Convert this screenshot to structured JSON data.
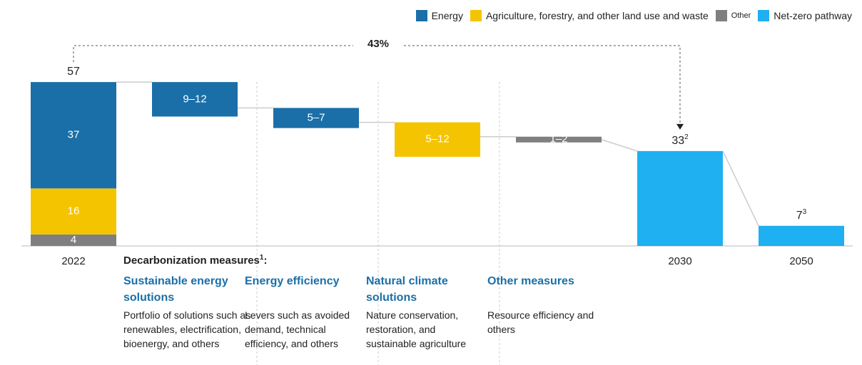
{
  "chart_data": {
    "type": "waterfall",
    "ylim": [
      0,
      60
    ],
    "categories": [
      "2022",
      "2030",
      "2050"
    ],
    "totals": [
      57,
      33,
      7
    ],
    "total_footnotes": [
      null,
      "2",
      "3"
    ],
    "series": [
      {
        "name": "Energy",
        "color": "#1a6fa8",
        "values": [
          37,
          null,
          null
        ]
      },
      {
        "name": "Agriculture, forestry, and other land use and waste",
        "color": "#f5c400",
        "values": [
          16,
          null,
          null
        ]
      },
      {
        "name": "Other",
        "color": "#7f7f7f",
        "values": [
          4,
          null,
          null
        ]
      },
      {
        "name": "Net-zero pathway",
        "color": "#1eb0f0",
        "values": [
          null,
          33,
          7
        ]
      }
    ],
    "change": {
      "value": 43,
      "label": "43%"
    },
    "measures_heading": "Decarbonization measures",
    "measures_heading_footnote": "1",
    "measures_heading_suffix": ":",
    "measures": [
      {
        "name": "Sustainable energy solutions",
        "description": "Portfolio of solutions such as renewables, electrification, bioenergy, and others",
        "range": [
          9,
          12
        ],
        "label": "9–12",
        "color": "#1a6fa8"
      },
      {
        "name": "Energy efficiency",
        "description": "Levers such as avoided demand, technical efficiency, and others",
        "range": [
          5,
          7
        ],
        "label": "5–7",
        "color": "#1a6fa8"
      },
      {
        "name": "Natural climate solutions",
        "description": "Nature conservation, restoration, and sustainable agriculture",
        "range": [
          5,
          12
        ],
        "label": "5–12",
        "color": "#f5c400"
      },
      {
        "name": "Other measures",
        "description": "Resource efficiency and others",
        "range": [
          1,
          2
        ],
        "label": "1–2",
        "color": "#7f7f7f"
      }
    ]
  }
}
